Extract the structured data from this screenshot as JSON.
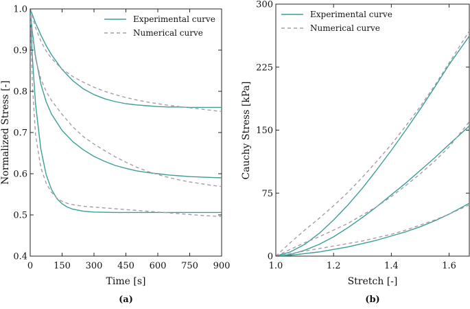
{
  "chart_data": [
    {
      "type": "line",
      "panel_label": "(a)",
      "xlabel": "Time [s]",
      "ylabel": "Normalized Stress [-]",
      "xlim": [
        0,
        900
      ],
      "ylim": [
        0.4,
        1.0
      ],
      "xticks": [
        0,
        150,
        300,
        450,
        600,
        750,
        900
      ],
      "xtick_labels": [
        "0",
        "150",
        "300",
        "450",
        "600",
        "750",
        "900"
      ],
      "yticks": [
        0.4,
        0.5,
        0.6,
        0.7,
        0.8,
        0.9,
        1.0
      ],
      "ytick_labels": [
        "0.4",
        "0.5",
        "0.6",
        "0.7",
        "0.8",
        "0.9",
        "1.0"
      ],
      "legend_position": "top-right",
      "legend": [
        "Experimental curve",
        "Numerical curve"
      ],
      "colors": {
        "experimental": "#3a9e96",
        "numerical": "#a89aaa"
      },
      "series": [
        {
          "name": "Experimental curve",
          "label": "upper",
          "x": [
            0,
            25,
            50,
            75,
            100,
            150,
            200,
            250,
            300,
            350,
            400,
            450,
            500,
            550,
            600,
            650,
            700,
            750,
            800,
            850,
            900
          ],
          "y": [
            1.0,
            0.966,
            0.937,
            0.911,
            0.889,
            0.853,
            0.826,
            0.806,
            0.792,
            0.782,
            0.775,
            0.77,
            0.767,
            0.765,
            0.763,
            0.762,
            0.762,
            0.761,
            0.761,
            0.761,
            0.761
          ]
        },
        {
          "name": "Numerical curve",
          "label": "upper",
          "x": [
            0,
            25,
            50,
            75,
            100,
            150,
            200,
            250,
            300,
            350,
            400,
            450,
            500,
            550,
            600,
            650,
            700,
            750,
            800,
            850,
            900
          ],
          "y": [
            1.0,
            0.955,
            0.922,
            0.898,
            0.88,
            0.854,
            0.836,
            0.822,
            0.81,
            0.8,
            0.792,
            0.785,
            0.779,
            0.774,
            0.77,
            0.766,
            0.763,
            0.76,
            0.757,
            0.754,
            0.751
          ]
        },
        {
          "name": "Experimental curve",
          "label": "middle",
          "x": [
            0,
            10,
            25,
            50,
            75,
            100,
            150,
            200,
            250,
            300,
            350,
            400,
            450,
            500,
            550,
            600,
            650,
            700,
            750,
            800,
            850,
            900
          ],
          "y": [
            1.0,
            0.945,
            0.885,
            0.818,
            0.775,
            0.745,
            0.705,
            0.678,
            0.658,
            0.642,
            0.63,
            0.62,
            0.613,
            0.607,
            0.603,
            0.6,
            0.597,
            0.595,
            0.593,
            0.592,
            0.591,
            0.59
          ]
        },
        {
          "name": "Numerical curve",
          "label": "middle",
          "x": [
            0,
            10,
            25,
            50,
            75,
            100,
            150,
            200,
            250,
            300,
            350,
            400,
            450,
            500,
            550,
            600,
            650,
            700,
            750,
            800,
            850,
            900
          ],
          "y": [
            1.0,
            0.935,
            0.88,
            0.83,
            0.8,
            0.778,
            0.744,
            0.714,
            0.69,
            0.672,
            0.656,
            0.641,
            0.628,
            0.616,
            0.606,
            0.598,
            0.591,
            0.585,
            0.58,
            0.576,
            0.572,
            0.569
          ]
        },
        {
          "name": "Experimental curve",
          "label": "lower",
          "x": [
            0,
            10,
            25,
            50,
            75,
            100,
            125,
            150,
            175,
            200,
            250,
            300,
            400,
            500,
            600,
            700,
            800,
            900
          ],
          "y": [
            1.0,
            0.885,
            0.77,
            0.66,
            0.598,
            0.562,
            0.54,
            0.527,
            0.519,
            0.514,
            0.509,
            0.507,
            0.506,
            0.506,
            0.506,
            0.506,
            0.506,
            0.506
          ]
        },
        {
          "name": "Numerical curve",
          "label": "lower",
          "x": [
            0,
            10,
            25,
            50,
            75,
            100,
            125,
            150,
            175,
            200,
            250,
            300,
            400,
            500,
            600,
            700,
            800,
            900
          ],
          "y": [
            1.0,
            0.82,
            0.695,
            0.615,
            0.577,
            0.555,
            0.541,
            0.533,
            0.528,
            0.525,
            0.521,
            0.519,
            0.515,
            0.511,
            0.507,
            0.503,
            0.499,
            0.496
          ]
        }
      ]
    },
    {
      "type": "line",
      "panel_label": "(b)",
      "xlabel": "Stretch [-]",
      "ylabel": "Cauchy Stress [kPa]",
      "xlim": [
        1.0,
        1.67
      ],
      "ylim": [
        0,
        300
      ],
      "xticks": [
        1.0,
        1.2,
        1.4,
        1.6
      ],
      "xtick_labels": [
        "1.0",
        "1.2",
        "1.4",
        "1.6"
      ],
      "yticks": [
        0,
        75,
        150,
        225,
        300
      ],
      "ytick_labels": [
        "0",
        "75",
        "150",
        "225",
        "300"
      ],
      "legend_position": "top-left",
      "legend": [
        "Experimental curve",
        "Numerical curve"
      ],
      "colors": {
        "experimental": "#3a9e96",
        "numerical": "#a89aaa"
      },
      "series": [
        {
          "name": "Experimental curve",
          "label": "upper",
          "x": [
            1.0,
            1.05,
            1.1,
            1.15,
            1.2,
            1.25,
            1.3,
            1.35,
            1.4,
            1.45,
            1.5,
            1.55,
            1.6,
            1.67
          ],
          "y": [
            0,
            5,
            14,
            27,
            43,
            61,
            81,
            103,
            126,
            150,
            175,
            201,
            228,
            262
          ]
        },
        {
          "name": "Numerical curve",
          "label": "upper",
          "x": [
            1.0,
            1.05,
            1.1,
            1.15,
            1.2,
            1.25,
            1.3,
            1.35,
            1.4,
            1.45,
            1.5,
            1.55,
            1.6,
            1.67
          ],
          "y": [
            0,
            16,
            31,
            45,
            60,
            76,
            94,
            113,
            133,
            155,
            178,
            203,
            230,
            268
          ]
        },
        {
          "name": "Experimental curve",
          "label": "middle",
          "x": [
            1.0,
            1.05,
            1.1,
            1.15,
            1.2,
            1.25,
            1.3,
            1.35,
            1.4,
            1.45,
            1.5,
            1.55,
            1.6,
            1.67
          ],
          "y": [
            0,
            2,
            7,
            14,
            23,
            34,
            46,
            59,
            73,
            87,
            102,
            117,
            133,
            155
          ]
        },
        {
          "name": "Numerical curve",
          "label": "middle",
          "x": [
            1.0,
            1.05,
            1.1,
            1.15,
            1.2,
            1.25,
            1.3,
            1.35,
            1.4,
            1.45,
            1.5,
            1.55,
            1.6,
            1.67
          ],
          "y": [
            0,
            8,
            16,
            23,
            31,
            39,
            49,
            59,
            71,
            84,
            98,
            113,
            130,
            160
          ]
        },
        {
          "name": "Experimental curve",
          "label": "lower",
          "x": [
            1.0,
            1.05,
            1.1,
            1.15,
            1.2,
            1.25,
            1.3,
            1.35,
            1.4,
            1.45,
            1.5,
            1.55,
            1.6,
            1.67
          ],
          "y": [
            0,
            1,
            3,
            5,
            8,
            11,
            15,
            19,
            24,
            29,
            35,
            42,
            50,
            63
          ]
        },
        {
          "name": "Numerical curve",
          "label": "lower",
          "x": [
            1.0,
            1.05,
            1.1,
            1.15,
            1.2,
            1.25,
            1.3,
            1.35,
            1.4,
            1.45,
            1.5,
            1.55,
            1.6,
            1.67
          ],
          "y": [
            0,
            3,
            6,
            9,
            12,
            15,
            18,
            22,
            26,
            31,
            37,
            43,
            50,
            61
          ]
        }
      ]
    }
  ]
}
